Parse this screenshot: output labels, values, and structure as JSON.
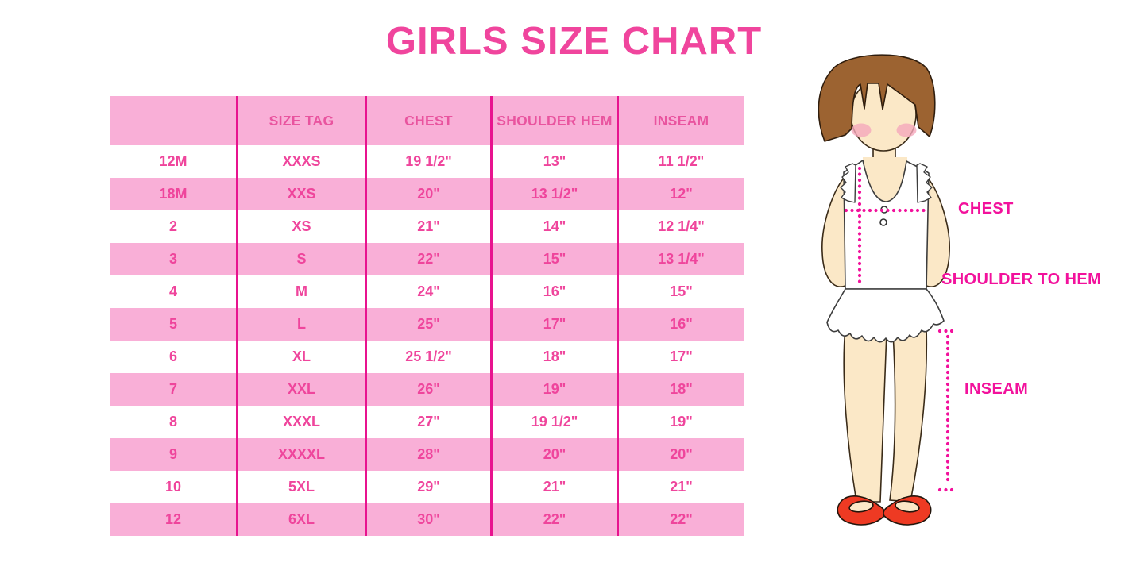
{
  "chart_data": {
    "type": "table",
    "title": "GIRLS SIZE CHART",
    "columns": [
      "",
      "SIZE TAG",
      "CHEST",
      "SHOULDER HEM",
      "INSEAM"
    ],
    "rows": [
      [
        "12M",
        "XXXS",
        "19 1/2\"",
        "13\"",
        "11 1/2\""
      ],
      [
        "18M",
        "XXS",
        "20\"",
        "13 1/2\"",
        "12\""
      ],
      [
        "2",
        "XS",
        "21\"",
        "14\"",
        "12 1/4\""
      ],
      [
        "3",
        "S",
        "22\"",
        "15\"",
        "13 1/4\""
      ],
      [
        "4",
        "M",
        "24\"",
        "16\"",
        "15\""
      ],
      [
        "5",
        "L",
        "25\"",
        "17\"",
        "16\""
      ],
      [
        "6",
        "XL",
        "25 1/2\"",
        "18\"",
        "17\""
      ],
      [
        "7",
        "XXL",
        "26\"",
        "19\"",
        "18\""
      ],
      [
        "8",
        "XXXL",
        "27\"",
        "19 1/2\"",
        "19\""
      ],
      [
        "9",
        "XXXXL",
        "28\"",
        "20\"",
        "20\""
      ],
      [
        "10",
        "5XL",
        "29\"",
        "21\"",
        "21\""
      ],
      [
        "12",
        "6XL",
        "30\"",
        "22\"",
        "22\""
      ]
    ],
    "layout": {
      "row_striping": "alternating white/pink starting white",
      "grid": "vertical magenta dividers only"
    }
  },
  "figure": {
    "labels": {
      "chest": "CHEST",
      "shoulder_to_hem": "SHOULDER TO HEM",
      "inseam": "INSEAM"
    }
  },
  "colors": {
    "title_pink": "#F0459D",
    "cell_text_pink": "#EF459C",
    "band_pink": "#F9AFD7",
    "divider_magenta": "#E8138F",
    "label_magenta": "#F2119C",
    "hair_brown": "#9C6331",
    "skin": "#FBE8C7",
    "blush": "#F5A8BB",
    "dress_white": "#FFFFFF",
    "shoe_red": "#EE3A23"
  }
}
